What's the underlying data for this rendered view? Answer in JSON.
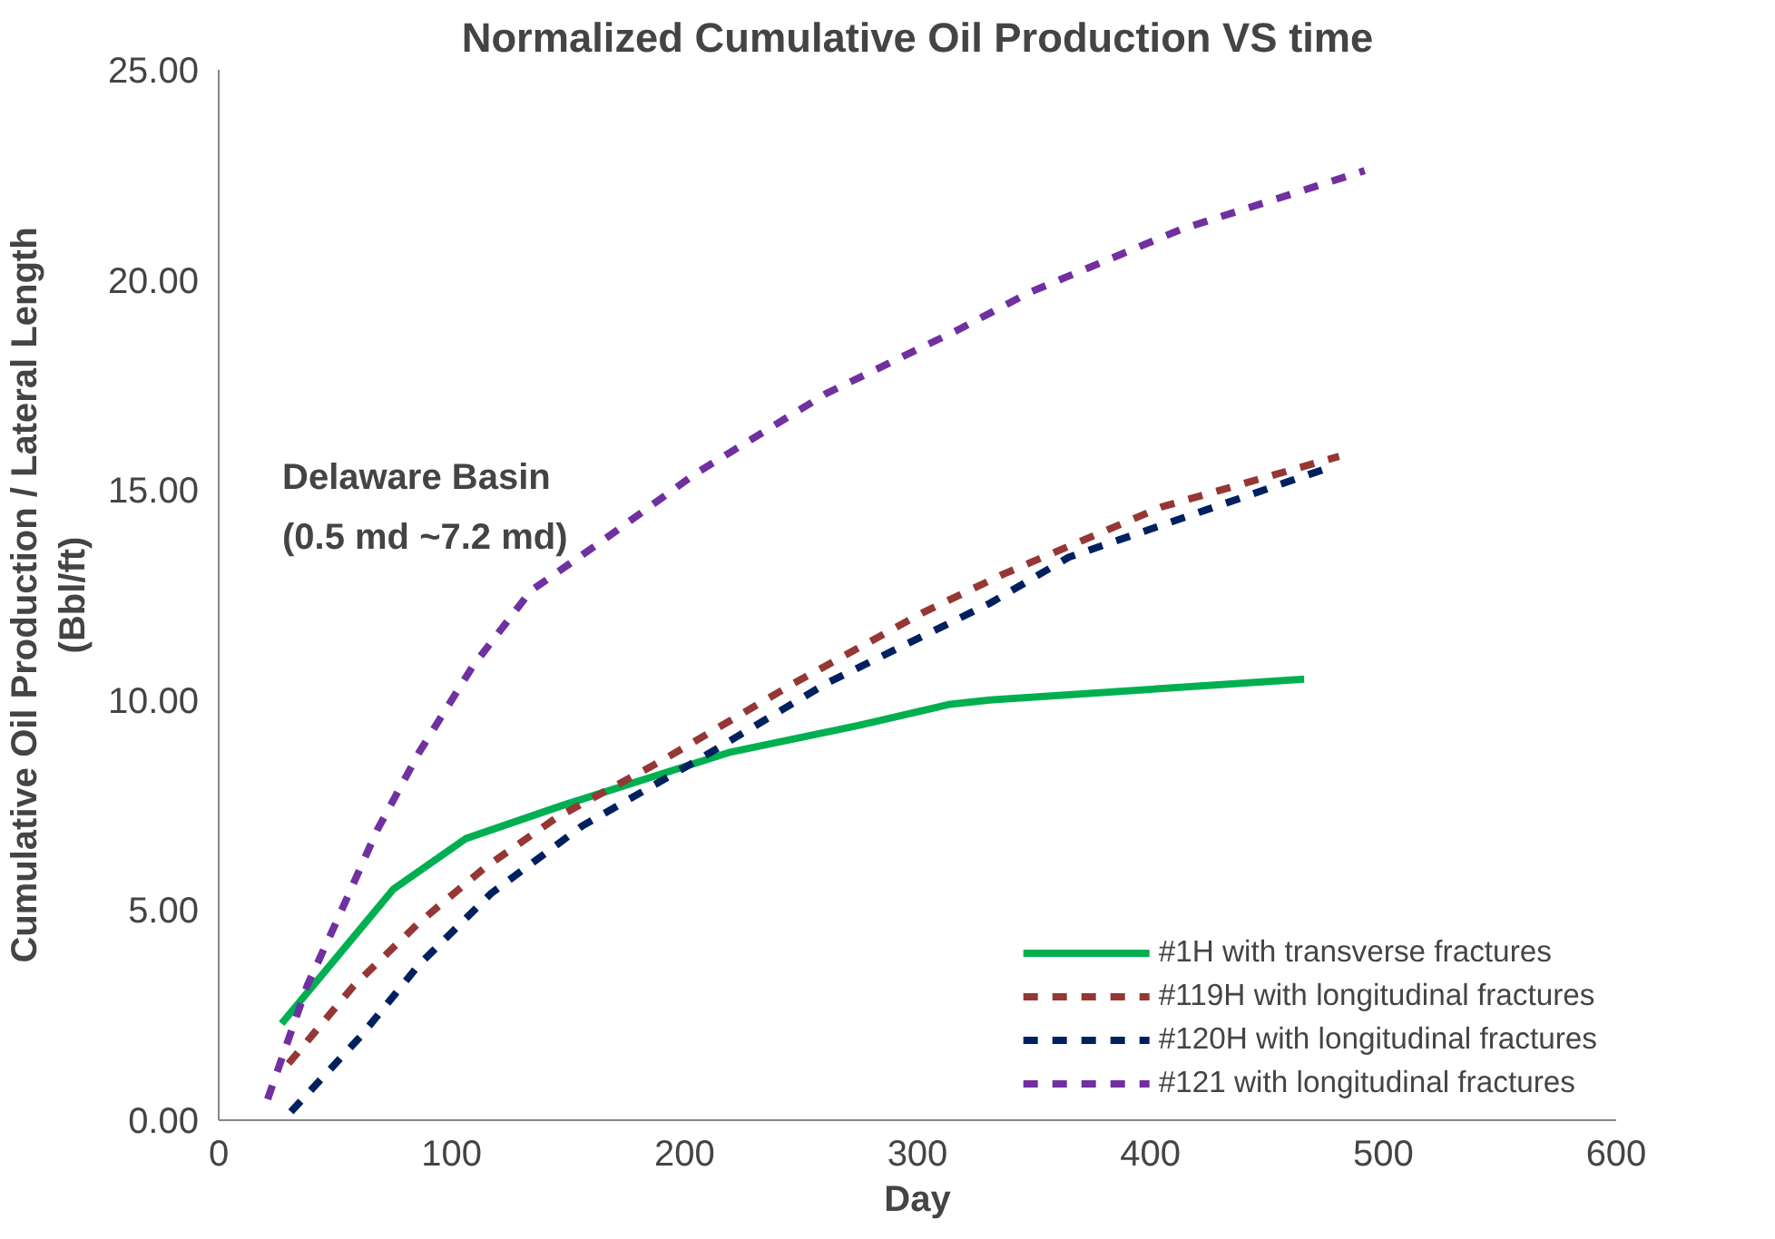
{
  "chart_data": {
    "type": "line",
    "title": "Normalized Cumulative Oil Production VS time",
    "xlabel": "Day",
    "ylabel": "Cumulative Oil Production / Lateral Length\n(Bbl/ft)",
    "annotations": [
      "Delaware Basin\n(0.5  md ~7.2  md)"
    ],
    "xlim": [
      0,
      600
    ],
    "xticks": [
      0,
      100,
      200,
      300,
      400,
      500,
      600
    ],
    "ylim": [
      0,
      25
    ],
    "yticks": [
      {
        "value": 0,
        "label": "0.00"
      },
      {
        "value": 5,
        "label": "5.00"
      },
      {
        "value": 10,
        "label": "10.00"
      },
      {
        "value": 15,
        "label": "15.00"
      },
      {
        "value": 20,
        "label": "20.00"
      },
      {
        "value": 25,
        "label": "25.00"
      }
    ],
    "grid": false,
    "legend": "bottom right",
    "marker": "none",
    "series": [
      {
        "name": "#1H with transverse fractures",
        "color": "#00b050",
        "line_style": "solid",
        "x": [
          27,
          75,
          106,
          148,
          219,
          275,
          314,
          331,
          466
        ],
        "values": [
          2.3,
          5.5,
          6.7,
          7.5,
          8.75,
          9.4,
          9.9,
          10.0,
          10.5
        ]
      },
      {
        "name": "#119H with longitudinal fractures",
        "color": "#953735",
        "line_style": "dashed",
        "x": [
          30,
          58,
          86,
          114,
          145,
          190,
          247,
          303,
          337,
          405,
          481
        ],
        "values": [
          1.35,
          3.2,
          4.7,
          6.0,
          7.2,
          8.55,
          10.4,
          12.1,
          13.0,
          14.6,
          15.8
        ]
      },
      {
        "name": "#120H with longitudinal fractures",
        "color": "#002060",
        "line_style": "dashed",
        "x": [
          31,
          61,
          86,
          117,
          156,
          205,
          261,
          331,
          365,
          475
        ],
        "values": [
          0.2,
          2.0,
          3.7,
          5.4,
          7.0,
          8.55,
          10.4,
          12.3,
          13.4,
          15.5
        ]
      },
      {
        "name": "#121 with longitudinal fractures",
        "color": "#7030a0",
        "line_style": "dashed",
        "x": [
          21,
          38,
          52,
          68,
          86,
          109,
          134,
          165,
          205,
          261,
          317,
          348,
          413,
          492
        ],
        "values": [
          0.5,
          3.2,
          4.9,
          6.9,
          8.75,
          10.8,
          12.6,
          13.8,
          15.4,
          17.3,
          18.8,
          19.7,
          21.2,
          22.6
        ]
      }
    ]
  }
}
